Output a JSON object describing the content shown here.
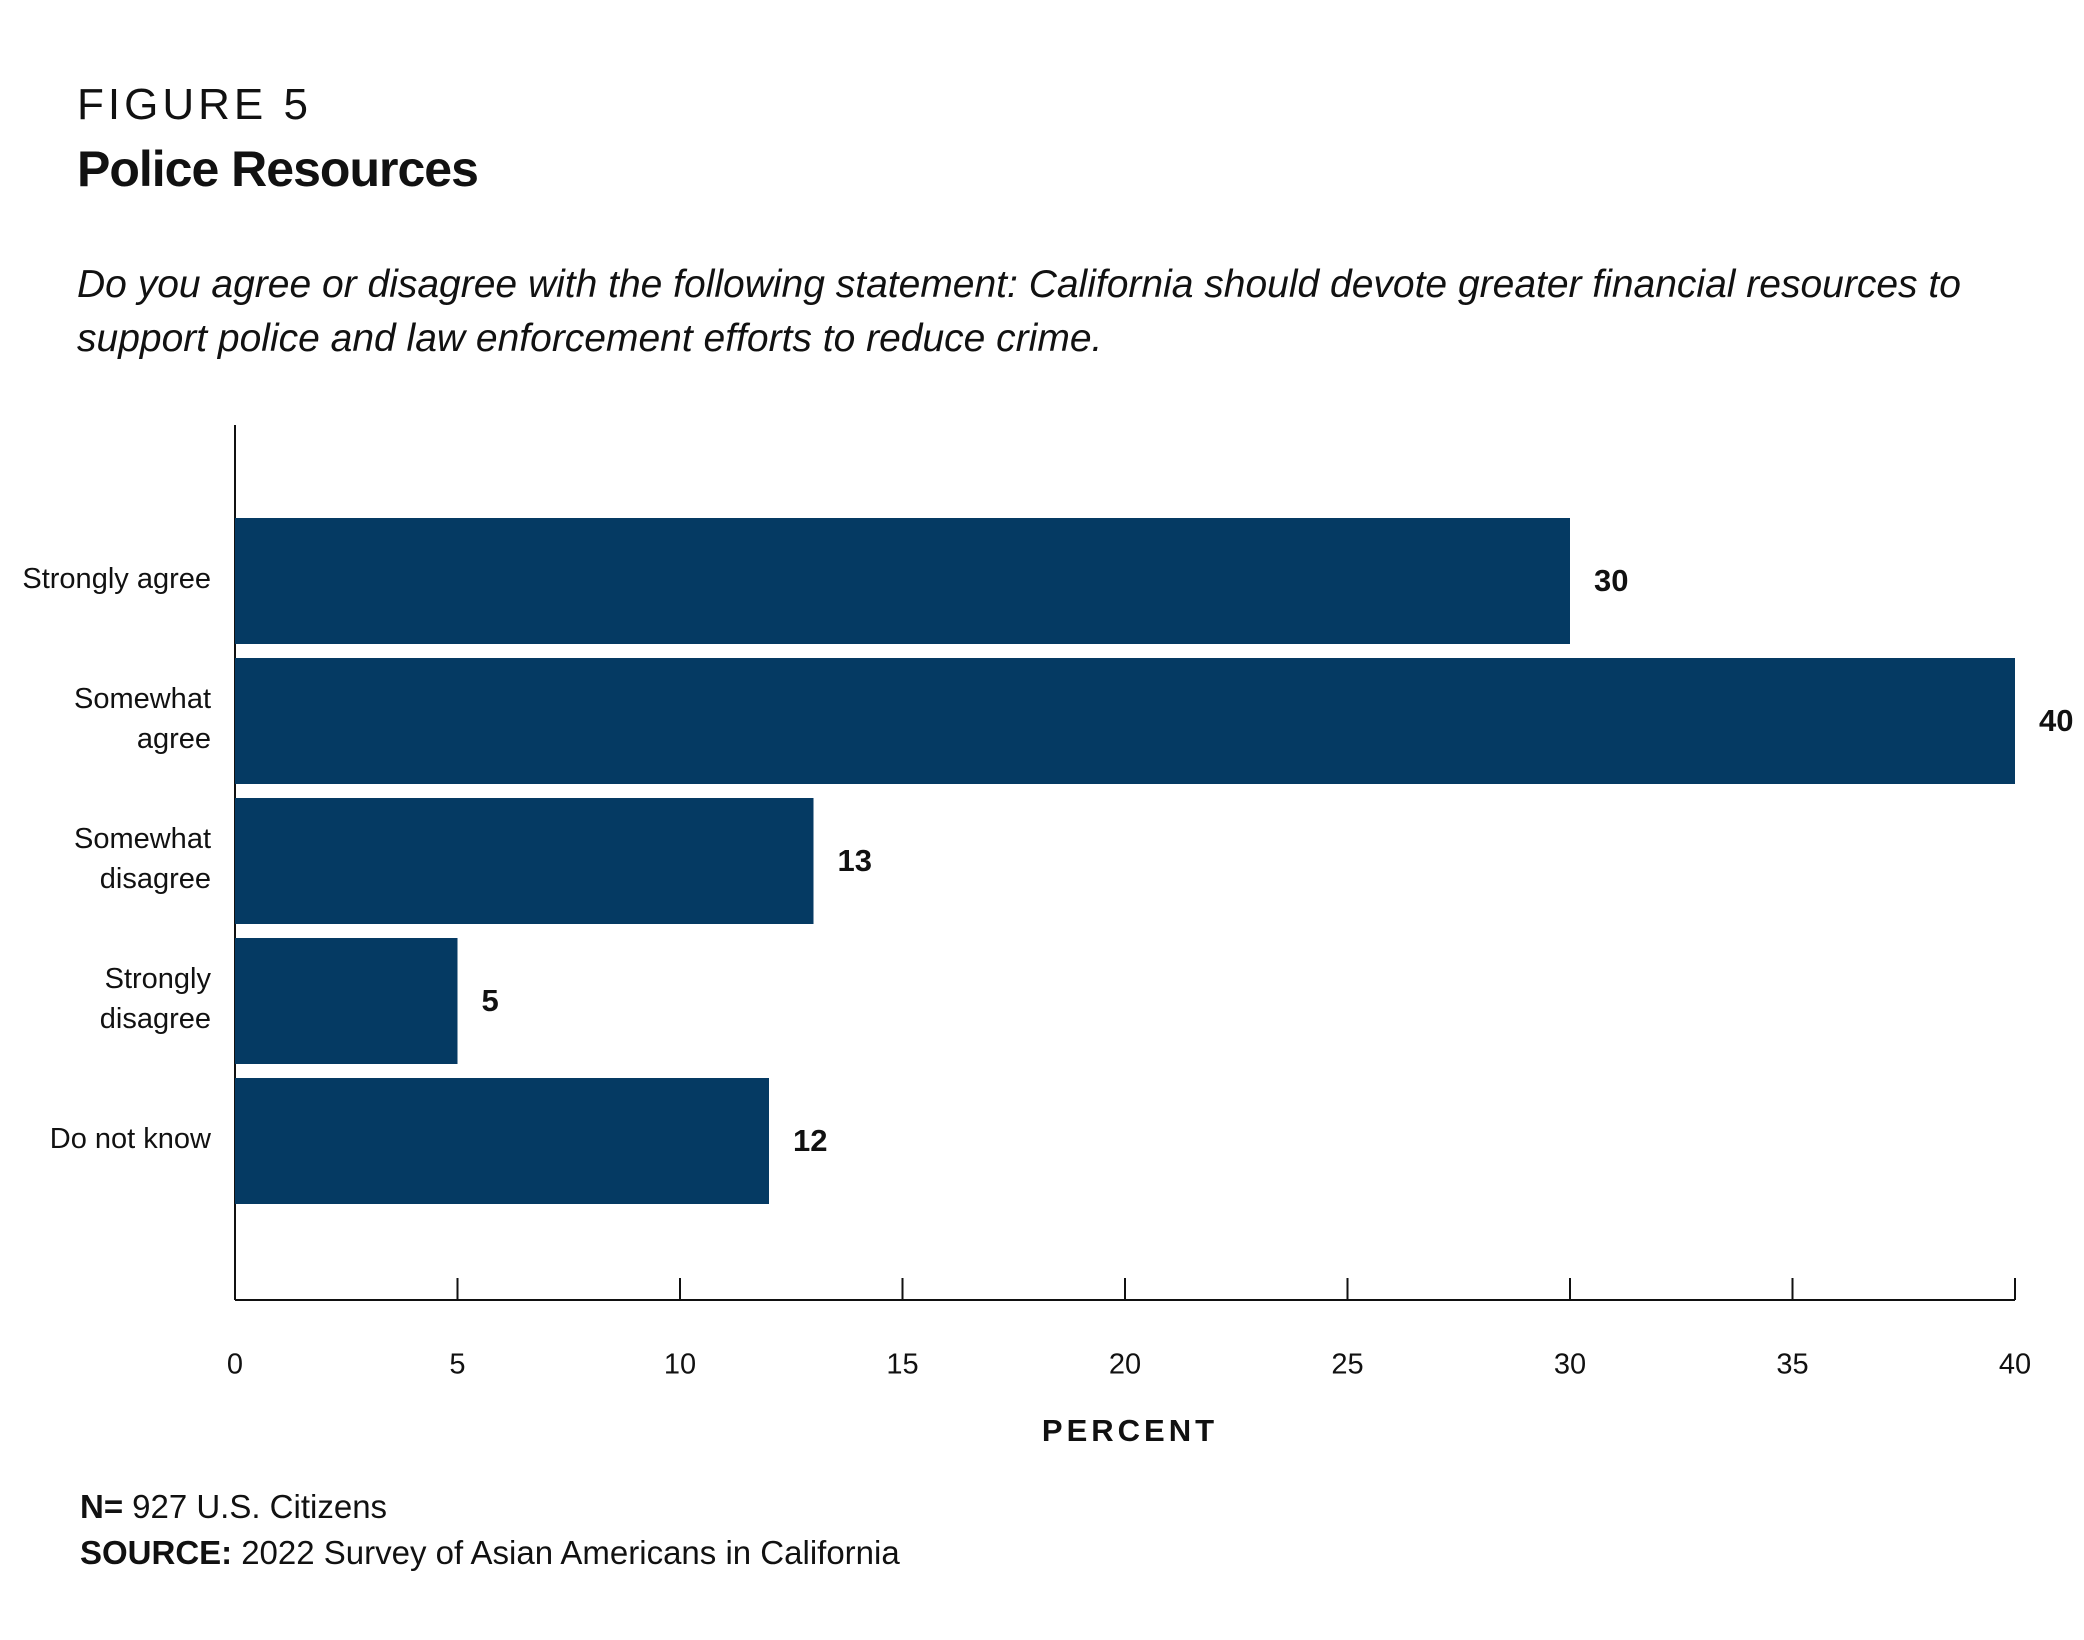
{
  "figure_label": "FIGURE 5",
  "chart_data": {
    "type": "bar",
    "orientation": "horizontal",
    "title": "Police Resources",
    "subtitle": "Do you agree or disagree with the following statement: California should devote greater financial resources to support police and law enforcement efforts to reduce crime.",
    "categories": [
      "Strongly agree",
      "Somewhat agree",
      "Somewhat disagree",
      "Strongly disagree",
      "Do not know"
    ],
    "values": [
      30,
      40,
      13,
      5,
      12
    ],
    "color": "#053a63",
    "xlim": [
      0,
      40
    ],
    "xticks": [
      0,
      5,
      10,
      15,
      20,
      25,
      30,
      35,
      40
    ],
    "xlabel": "PERCENT",
    "grid": false
  },
  "notes": [
    {
      "label": "N=",
      "text": "927 U.S. Citizens"
    },
    {
      "label": "SOURCE:",
      "text": "2022 Survey of Asian Americans in California"
    }
  ]
}
